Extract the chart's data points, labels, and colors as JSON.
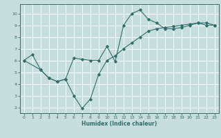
{
  "title": "",
  "xlabel": "Humidex (Indice chaleur)",
  "ylabel": "",
  "bg_color": "#c8dede",
  "grid_color": "#ffffff",
  "line_color": "#2d6e6a",
  "xlim": [
    -0.5,
    23.5
  ],
  "ylim": [
    1.5,
    10.8
  ],
  "xticks": [
    0,
    1,
    2,
    3,
    4,
    5,
    6,
    7,
    8,
    9,
    10,
    11,
    12,
    13,
    14,
    15,
    16,
    17,
    18,
    19,
    20,
    21,
    22,
    23
  ],
  "yticks": [
    2,
    3,
    4,
    5,
    6,
    7,
    8,
    9,
    10
  ],
  "line1_x": [
    0,
    1,
    2,
    3,
    4,
    5,
    6,
    7,
    8,
    9,
    10,
    11,
    12,
    13,
    14,
    15,
    16,
    17,
    18,
    19,
    20,
    21,
    22,
    23
  ],
  "line1_y": [
    6.0,
    6.5,
    5.2,
    4.5,
    4.2,
    4.4,
    6.2,
    6.1,
    6.0,
    6.0,
    7.2,
    5.9,
    9.0,
    10.0,
    10.3,
    9.5,
    9.2,
    8.7,
    8.7,
    8.8,
    9.0,
    9.2,
    9.0,
    9.0
  ],
  "line2_x": [
    0,
    2,
    3,
    4,
    5,
    6,
    7,
    8,
    9,
    10,
    11,
    12,
    13,
    14,
    15,
    16,
    17,
    18,
    19,
    20,
    21,
    22,
    23
  ],
  "line2_y": [
    6.0,
    5.2,
    4.5,
    4.2,
    4.4,
    3.0,
    1.9,
    2.7,
    4.8,
    6.0,
    6.4,
    7.0,
    7.5,
    8.0,
    8.5,
    8.7,
    8.8,
    8.9,
    9.0,
    9.1,
    9.2,
    9.2,
    9.0
  ]
}
